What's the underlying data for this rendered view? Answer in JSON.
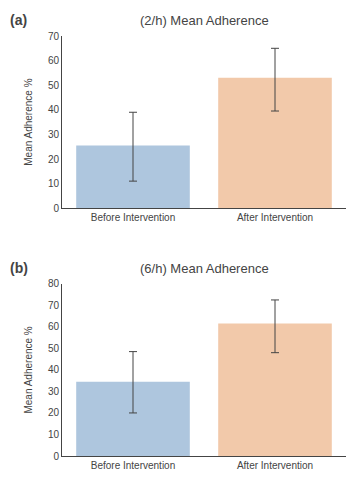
{
  "chart_data": [
    {
      "type": "bar",
      "title": "(2/h) Mean Adherence",
      "categories": [
        "Before Intervention",
        "After Intervention"
      ],
      "values": [
        25.5,
        53.0
      ],
      "errors_up": [
        13.5,
        12.0
      ],
      "errors_down": [
        14.5,
        13.5
      ],
      "colors": [
        "#aec6de",
        "#f2c9aa"
      ],
      "ylim": [
        0,
        70
      ],
      "yticks": [
        0,
        10,
        20,
        30,
        40,
        50,
        60,
        70
      ],
      "ylabel": "Mean Adherence %",
      "annotations": [
        "(a)"
      ],
      "grid": false
    },
    {
      "type": "bar",
      "title": "(6/h) Mean Adherence",
      "categories": [
        "Before Intervention",
        "After Intervention"
      ],
      "values": [
        34.5,
        61.5
      ],
      "errors_up": [
        14.0,
        11.0
      ],
      "errors_down": [
        14.5,
        13.5
      ],
      "colors": [
        "#aec6de",
        "#f2c9aa"
      ],
      "ylim": [
        0,
        80
      ],
      "yticks": [
        0,
        10,
        20,
        30,
        40,
        50,
        60,
        70,
        80
      ],
      "ylabel": "Mean Adherence %",
      "annotations": [
        "(b)"
      ],
      "grid": false
    }
  ]
}
